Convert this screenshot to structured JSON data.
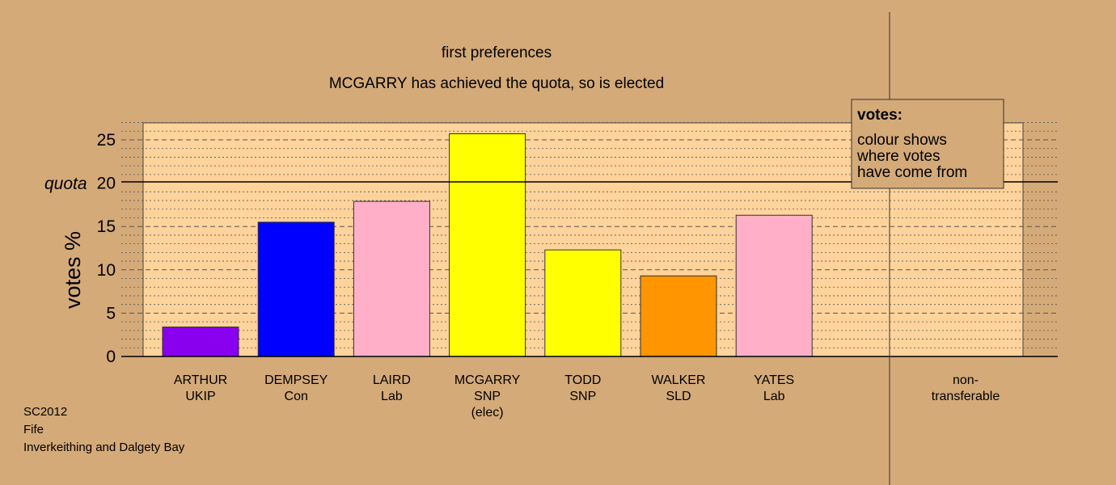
{
  "chart_data": {
    "type": "bar",
    "title": "first preferences",
    "subtitle": "MCGARRY has achieved the quota, so is elected",
    "ylabel": "votes %",
    "ylim": [
      0,
      27
    ],
    "yticks": [
      "0",
      "5",
      "10",
      "15",
      "20",
      "25"
    ],
    "quota_label": "quota",
    "quota_value": 20,
    "categories": [
      {
        "name": "ARTHUR",
        "party": "UKIP",
        "extra": ""
      },
      {
        "name": "DEMPSEY",
        "party": "Con",
        "extra": ""
      },
      {
        "name": "LAIRD",
        "party": "Lab",
        "extra": ""
      },
      {
        "name": "MCGARRY",
        "party": "SNP",
        "extra": "(elec)"
      },
      {
        "name": "TODD",
        "party": "SNP",
        "extra": ""
      },
      {
        "name": "WALKER",
        "party": "SLD",
        "extra": ""
      },
      {
        "name": "YATES",
        "party": "Lab",
        "extra": ""
      }
    ],
    "values": [
      3.4,
      15.5,
      17.9,
      25.7,
      12.3,
      9.3,
      16.3
    ],
    "colors": [
      "#8800ee",
      "#0000ff",
      "#ffb0c8",
      "#ffff00",
      "#ffff00",
      "#ff9500",
      "#ffb0c8"
    ],
    "nontransferable": {
      "label_line1": "non-",
      "label_line2": "transferable",
      "value": 0
    },
    "legend": {
      "title": "votes:",
      "lines": [
        "colour shows",
        "where votes",
        "have come from"
      ]
    },
    "grid": true,
    "colors_theme": {
      "background": "#d4aa78",
      "plot_area": "#ffd39b"
    }
  },
  "footer": {
    "line1": "SC2012",
    "line2": "Fife",
    "line3": "Inverkeithing and Dalgety Bay"
  }
}
